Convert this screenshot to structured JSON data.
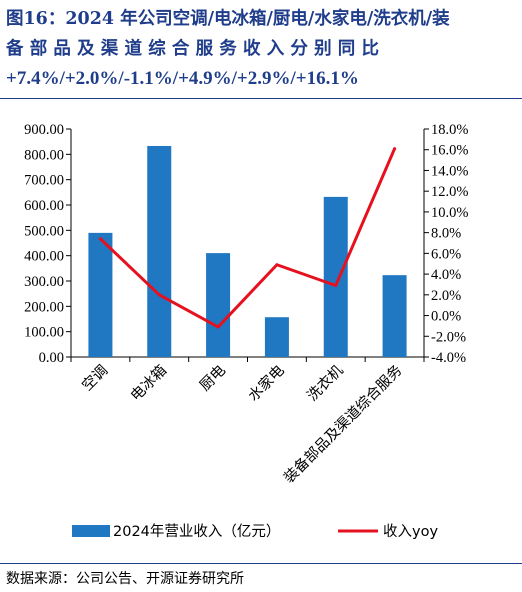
{
  "title": {
    "line1": "图16：2024 年公司空调/电冰箱/厨电/水家电/洗衣机/装",
    "line2": "备部品及渠道综合服务收入分别同比",
    "line3": "+7.4%/+2.0%/-1.1%/+4.9%/+2.9%/+16.1%"
  },
  "source": "数据来源：公司公告、开源证券研究所",
  "chart_data": {
    "type": "bar",
    "categories": [
      "空调",
      "电冰箱",
      "厨电",
      "水家电",
      "洗衣机",
      "装备部品及渠道综合服务"
    ],
    "series": [
      {
        "name": "2024年营业收入（亿元）",
        "type": "bar",
        "axis": "left",
        "color": "#1f78c1",
        "values": [
          490,
          833,
          410,
          157,
          632,
          323
        ]
      },
      {
        "name": "收入yoy",
        "type": "line",
        "axis": "right",
        "color": "#e6111f",
        "values": [
          7.4,
          2.0,
          -1.1,
          4.9,
          2.9,
          16.1
        ]
      }
    ],
    "y_left": {
      "min": 0,
      "max": 900,
      "step": 100,
      "ticks": [
        "0.00",
        "100.00",
        "200.00",
        "300.00",
        "400.00",
        "500.00",
        "600.00",
        "700.00",
        "800.00",
        "900.00"
      ]
    },
    "y_right": {
      "min": -4,
      "max": 18,
      "step": 2,
      "ticks": [
        "-4.0%",
        "-2.0%",
        "0.0%",
        "2.0%",
        "4.0%",
        "6.0%",
        "8.0%",
        "10.0%",
        "12.0%",
        "14.0%",
        "16.0%",
        "18.0%"
      ]
    },
    "grid": false,
    "legend_position": "bottom"
  }
}
